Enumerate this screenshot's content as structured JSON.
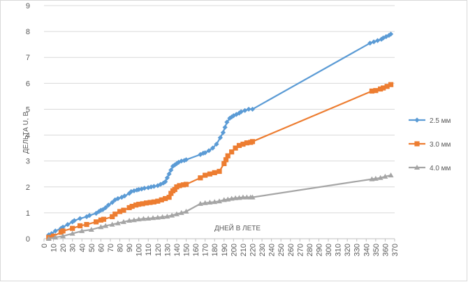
{
  "chart_data": {
    "type": "line",
    "title": "",
    "xlabel": "ДНЕЙ В ЛЕТЕ",
    "ylabel": "ДЕЛЬТА U, В",
    "xlim": [
      0,
      370
    ],
    "ylim": [
      0,
      9
    ],
    "xticks": [
      0,
      10,
      20,
      30,
      40,
      50,
      60,
      70,
      80,
      90,
      100,
      110,
      120,
      130,
      140,
      150,
      160,
      170,
      180,
      190,
      200,
      210,
      220,
      230,
      240,
      250,
      260,
      270,
      280,
      290,
      300,
      310,
      320,
      330,
      340,
      350,
      360,
      370
    ],
    "yticks": [
      0,
      1,
      2,
      3,
      4,
      5,
      6,
      7,
      8,
      9
    ],
    "grid": "horizontal",
    "legend_position": "right",
    "series": [
      {
        "name": "2.5 мм",
        "color": "#5b9bd5",
        "marker": "diamond",
        "x": [
          5,
          8,
          12,
          18,
          20,
          25,
          30,
          32,
          38,
          45,
          48,
          55,
          58,
          60,
          62,
          65,
          68,
          72,
          75,
          78,
          82,
          85,
          90,
          92,
          95,
          98,
          100,
          103,
          106,
          110,
          113,
          116,
          120,
          123,
          126,
          128,
          130,
          132,
          134,
          136,
          138,
          140,
          142,
          145,
          148,
          150,
          165,
          168,
          170,
          174,
          178,
          182,
          186,
          189,
          191,
          193,
          196,
          198,
          200,
          203,
          206,
          208,
          212,
          216,
          220,
          344,
          348,
          352,
          356,
          358,
          361,
          364,
          366
        ],
        "y": [
          0.15,
          0.2,
          0.3,
          0.4,
          0.45,
          0.55,
          0.65,
          0.7,
          0.78,
          0.85,
          0.9,
          0.98,
          1.05,
          1.1,
          1.12,
          1.2,
          1.3,
          1.4,
          1.5,
          1.55,
          1.6,
          1.65,
          1.75,
          1.82,
          1.85,
          1.88,
          1.9,
          1.92,
          1.95,
          1.97,
          2.0,
          2.02,
          2.05,
          2.1,
          2.15,
          2.2,
          2.35,
          2.5,
          2.65,
          2.8,
          2.85,
          2.9,
          2.95,
          3.0,
          3.02,
          3.05,
          3.25,
          3.3,
          3.32,
          3.4,
          3.5,
          3.65,
          3.9,
          4.1,
          4.3,
          4.5,
          4.65,
          4.7,
          4.75,
          4.8,
          4.85,
          4.9,
          4.95,
          5.0,
          5.0,
          7.55,
          7.6,
          7.65,
          7.7,
          7.75,
          7.8,
          7.85,
          7.9
        ]
      },
      {
        "name": "3.0 мм",
        "color": "#ed7d31",
        "marker": "square",
        "x": [
          5,
          10,
          18,
          20,
          30,
          38,
          45,
          55,
          60,
          63,
          72,
          75,
          80,
          84,
          90,
          93,
          97,
          100,
          104,
          108,
          112,
          116,
          120,
          124,
          128,
          132,
          134,
          136,
          138,
          140,
          143,
          147,
          150,
          165,
          170,
          175,
          180,
          185,
          190,
          192,
          194,
          198,
          202,
          206,
          210,
          214,
          218,
          220,
          346,
          350,
          355,
          358,
          362,
          366
        ],
        "y": [
          0.05,
          0.1,
          0.25,
          0.3,
          0.4,
          0.5,
          0.55,
          0.65,
          0.72,
          0.75,
          0.85,
          0.95,
          1.05,
          1.1,
          1.2,
          1.25,
          1.3,
          1.33,
          1.35,
          1.38,
          1.4,
          1.42,
          1.45,
          1.5,
          1.55,
          1.6,
          1.75,
          1.85,
          1.9,
          2.0,
          2.05,
          2.08,
          2.1,
          2.35,
          2.45,
          2.5,
          2.55,
          2.6,
          2.9,
          3.05,
          3.2,
          3.35,
          3.5,
          3.6,
          3.65,
          3.7,
          3.72,
          3.75,
          5.7,
          5.72,
          5.78,
          5.82,
          5.88,
          5.95
        ]
      },
      {
        "name": "4.0 мм",
        "color": "#a5a5a5",
        "marker": "triangle",
        "x": [
          5,
          12,
          20,
          30,
          40,
          50,
          60,
          65,
          72,
          78,
          84,
          90,
          95,
          100,
          105,
          110,
          115,
          120,
          125,
          130,
          135,
          140,
          145,
          150,
          165,
          170,
          175,
          180,
          185,
          190,
          194,
          198,
          202,
          206,
          210,
          214,
          218,
          220,
          346,
          350,
          355,
          360,
          366
        ],
        "y": [
          0.0,
          0.05,
          0.1,
          0.2,
          0.3,
          0.35,
          0.45,
          0.5,
          0.55,
          0.6,
          0.65,
          0.7,
          0.72,
          0.75,
          0.77,
          0.78,
          0.8,
          0.82,
          0.84,
          0.86,
          0.9,
          0.95,
          1.0,
          1.05,
          1.35,
          1.38,
          1.4,
          1.42,
          1.45,
          1.5,
          1.52,
          1.55,
          1.57,
          1.58,
          1.6,
          1.6,
          1.6,
          1.6,
          2.3,
          2.32,
          2.35,
          2.4,
          2.45
        ]
      }
    ]
  }
}
